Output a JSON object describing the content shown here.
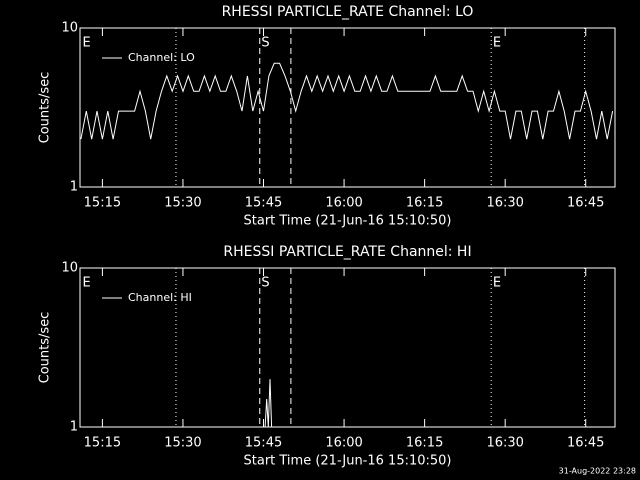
{
  "chart_data": [
    {
      "type": "line",
      "title": "RHESSI PARTICLE_RATE Channel: LO",
      "ylabel": "Counts/sec",
      "xlabel": "Start Time (21-Jun-16 15:10:50)",
      "log_y": true,
      "ylim": [
        1,
        10
      ],
      "yticks": [
        1,
        10
      ],
      "xlim": [
        910.83,
        1010.45
      ],
      "xticks": [
        {
          "value": 915,
          "label": "15:15"
        },
        {
          "value": 930,
          "label": "15:30"
        },
        {
          "value": 945,
          "label": "15:45"
        },
        {
          "value": 960,
          "label": "16:00"
        },
        {
          "value": 975,
          "label": "16:15"
        },
        {
          "value": 990,
          "label": "16:30"
        },
        {
          "value": 1005,
          "label": "16:45"
        }
      ],
      "vlines": [
        {
          "x": 928.7,
          "style": "dotted"
        },
        {
          "x": 944.3,
          "style": "dashed"
        },
        {
          "x": 950.1,
          "style": "dashed"
        },
        {
          "x": 987.4,
          "style": "dotted"
        },
        {
          "x": 1004.8,
          "style": "dotted"
        }
      ],
      "annotations": [
        {
          "x": 911.3,
          "text": "E"
        },
        {
          "x": 944.6,
          "text": "S"
        },
        {
          "x": 987.7,
          "text": "E"
        }
      ],
      "legend": "upper left",
      "series": [
        {
          "name": "Channel: LO",
          "color": "#ffffff",
          "x": [
            911,
            912,
            913,
            914,
            915,
            916,
            917,
            918,
            919,
            920,
            921,
            922,
            923,
            924,
            925,
            926,
            927,
            928,
            929,
            930,
            931,
            932,
            933,
            934,
            935,
            936,
            937,
            938,
            939,
            940,
            941,
            942,
            943,
            944,
            945,
            946,
            947,
            948,
            949,
            950,
            951,
            952,
            953,
            954,
            955,
            956,
            957,
            958,
            959,
            960,
            961,
            962,
            963,
            964,
            965,
            966,
            967,
            968,
            969,
            970,
            971,
            972,
            973,
            974,
            975,
            976,
            977,
            978,
            979,
            980,
            981,
            982,
            983,
            984,
            985,
            986,
            987,
            988,
            989,
            990,
            991,
            992,
            993,
            994,
            995,
            996,
            997,
            998,
            999,
            1000,
            1001,
            1002,
            1003,
            1004,
            1005,
            1006,
            1007,
            1008,
            1009,
            1010
          ],
          "values": [
            2,
            3,
            2,
            3,
            2,
            3,
            2,
            3,
            3,
            3,
            3,
            4,
            3,
            2,
            3,
            4,
            5,
            4,
            5,
            4,
            5,
            4,
            4,
            5,
            4,
            5,
            4,
            4,
            5,
            4,
            3,
            5,
            3,
            4,
            3,
            5,
            6,
            6,
            5,
            4,
            3,
            4,
            5,
            4,
            5,
            4,
            5,
            4,
            5,
            4,
            5,
            4,
            4,
            5,
            4,
            5,
            4,
            4,
            5,
            4,
            4,
            4,
            4,
            4,
            4,
            4,
            5,
            4,
            4,
            4,
            4,
            5,
            4,
            4,
            3,
            4,
            3,
            4,
            3,
            3,
            2,
            3,
            3,
            2,
            3,
            3,
            2,
            3,
            3,
            4,
            3,
            2,
            3,
            3,
            4,
            3,
            2,
            3,
            2,
            3
          ]
        }
      ]
    },
    {
      "type": "line",
      "title": "RHESSI PARTICLE_RATE Channel: HI",
      "ylabel": "Counts/sec",
      "xlabel": "Start Time (21-Jun-16 15:10:50)",
      "log_y": true,
      "ylim": [
        1,
        10
      ],
      "yticks": [
        1,
        10
      ],
      "xlim": [
        910.83,
        1010.45
      ],
      "xticks": [
        {
          "value": 915,
          "label": "15:15"
        },
        {
          "value": 930,
          "label": "15:30"
        },
        {
          "value": 945,
          "label": "15:45"
        },
        {
          "value": 960,
          "label": "16:00"
        },
        {
          "value": 975,
          "label": "16:15"
        },
        {
          "value": 990,
          "label": "16:30"
        },
        {
          "value": 1005,
          "label": "16:45"
        }
      ],
      "vlines": [
        {
          "x": 928.7,
          "style": "dotted"
        },
        {
          "x": 944.3,
          "style": "dashed"
        },
        {
          "x": 950.1,
          "style": "dashed"
        },
        {
          "x": 987.4,
          "style": "dotted"
        },
        {
          "x": 1004.8,
          "style": "dotted"
        }
      ],
      "annotations": [
        {
          "x": 911.3,
          "text": "E"
        },
        {
          "x": 944.6,
          "text": "S"
        },
        {
          "x": 987.7,
          "text": "E"
        }
      ],
      "legend": "upper left",
      "series": [
        {
          "name": "Channel: HI",
          "color": "#ffffff",
          "x": [
            945.3,
            945.6,
            945.9,
            946.2,
            946.5
          ],
          "values": [
            1,
            1.5,
            1,
            2,
            1
          ]
        }
      ]
    }
  ],
  "footer": "31-Aug-2022 23:28"
}
